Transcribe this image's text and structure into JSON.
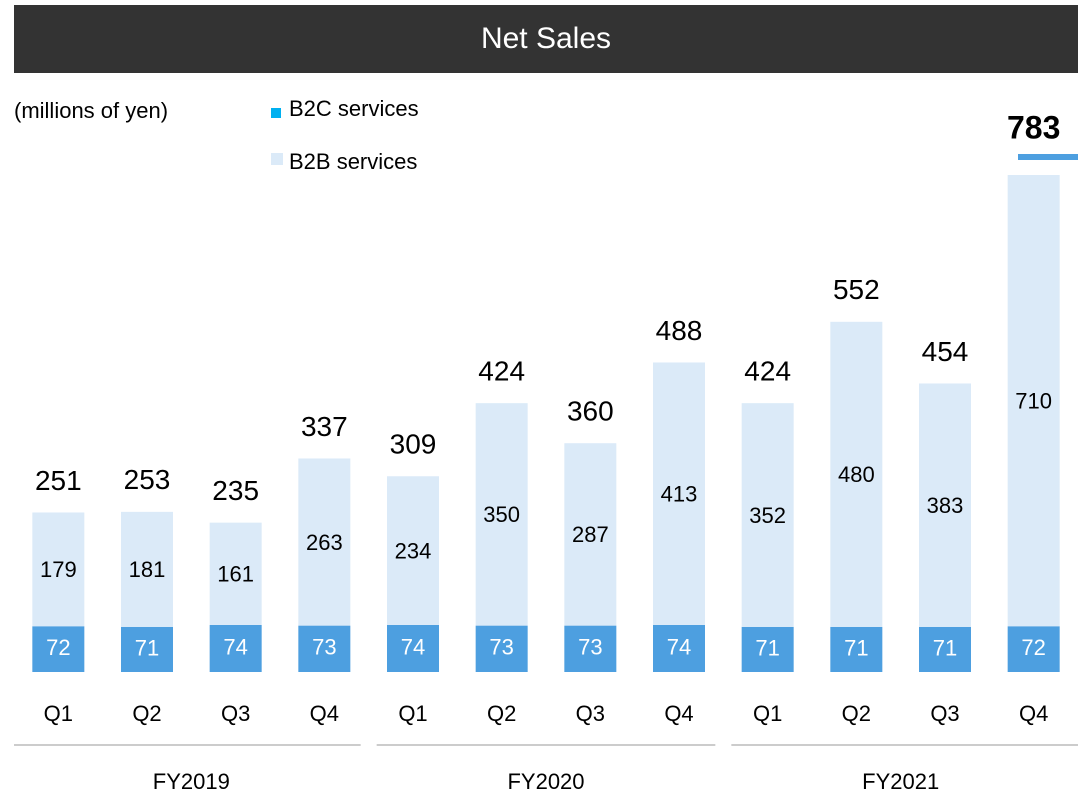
{
  "chart_data": {
    "type": "stacked-bar",
    "title": "Net Sales",
    "subtitle": "(millions of yen)",
    "categories": [
      "Q1",
      "Q2",
      "Q3",
      "Q4",
      "Q1",
      "Q2",
      "Q3",
      "Q4",
      "Q1",
      "Q2",
      "Q3",
      "Q4"
    ],
    "groups": [
      "FY2019",
      "FY2020",
      "FY2021"
    ],
    "series": [
      {
        "name": "B2C services",
        "color": "#4d9fe0",
        "legend_color": "#00b0f0",
        "values": [
          72,
          71,
          74,
          73,
          74,
          73,
          73,
          74,
          71,
          71,
          71,
          72
        ]
      },
      {
        "name": "B2B services",
        "color": "#dbeaf8",
        "values": [
          179,
          181,
          161,
          263,
          234,
          350,
          287,
          413,
          352,
          480,
          383,
          710
        ]
      }
    ],
    "totals": [
      251,
      253,
      235,
      337,
      309,
      424,
      360,
      488,
      424,
      552,
      454,
      783
    ]
  }
}
